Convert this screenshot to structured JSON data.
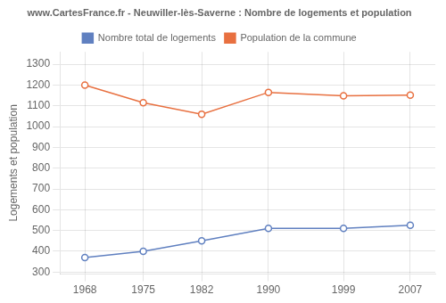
{
  "chart_data": {
    "type": "line",
    "title": "www.CartesFrance.fr - Neuwiller-lès-Saverne : Nombre de logements et population",
    "ylabel": "Logements et population",
    "x": [
      1968,
      1975,
      1982,
      1990,
      1999,
      2007
    ],
    "series": [
      {
        "name": "Nombre total de logements",
        "color": "#6080c0",
        "marker": "circle",
        "values": [
          370,
          400,
          450,
          510,
          510,
          525
        ]
      },
      {
        "name": "Population de la commune",
        "color": "#e87040",
        "marker": "circle",
        "values": [
          1200,
          1115,
          1060,
          1165,
          1148,
          1152
        ]
      }
    ],
    "xlim": [
      1965,
      2010
    ],
    "xticks": [
      1968,
      1975,
      1982,
      1990,
      1999,
      2007
    ],
    "ylim": [
      290,
      1360
    ],
    "yticks": [
      300,
      400,
      500,
      600,
      700,
      800,
      900,
      1000,
      1100,
      1200,
      1300
    ],
    "grid": true,
    "legend": "top"
  }
}
